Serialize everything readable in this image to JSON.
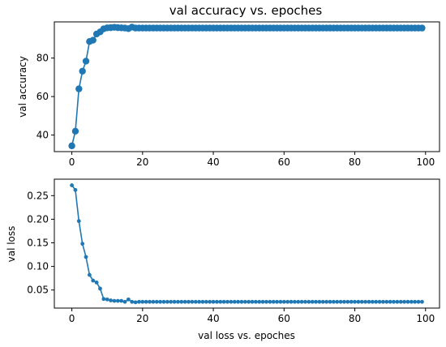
{
  "chart_data": [
    {
      "type": "line",
      "title": "val accuracy vs. epoches",
      "xlabel": "",
      "ylabel": "val accuracy",
      "xlim": [
        -4.95,
        103.95
      ],
      "ylim": [
        31.4,
        98.8
      ],
      "xticks": [
        0,
        20,
        40,
        60,
        80,
        100
      ],
      "yticks": [
        40,
        60,
        80
      ],
      "marker": "circle-large",
      "color": "#1f77b4",
      "grid": false,
      "series": [
        {
          "x": [
            0,
            1,
            2,
            3,
            4,
            5,
            6,
            7,
            8,
            9,
            10,
            11,
            12,
            13,
            14,
            15,
            16,
            17,
            18,
            19,
            20,
            21,
            22,
            23,
            24,
            25,
            26,
            27,
            28,
            29,
            30,
            31,
            32,
            33,
            34,
            35,
            36,
            37,
            38,
            39,
            40,
            41,
            42,
            43,
            44,
            45,
            46,
            47,
            48,
            49,
            50,
            51,
            52,
            53,
            54,
            55,
            56,
            57,
            58,
            59,
            60,
            61,
            62,
            63,
            64,
            65,
            66,
            67,
            68,
            69,
            70,
            71,
            72,
            73,
            74,
            75,
            76,
            77,
            78,
            79,
            80,
            81,
            82,
            83,
            84,
            85,
            86,
            87,
            88,
            89,
            90,
            91,
            92,
            93,
            94,
            95,
            96,
            97,
            98,
            99
          ],
          "values": [
            34.4,
            42.0,
            64.0,
            73.2,
            78.4,
            88.6,
            89.3,
            92.5,
            93.6,
            95.2,
            95.7,
            95.8,
            96.0,
            95.8,
            95.7,
            95.6,
            95.3,
            96.1,
            95.6,
            95.6,
            95.6,
            95.6,
            95.6,
            95.6,
            95.6,
            95.6,
            95.6,
            95.6,
            95.6,
            95.6,
            95.6,
            95.6,
            95.6,
            95.6,
            95.6,
            95.6,
            95.6,
            95.6,
            95.6,
            95.6,
            95.6,
            95.6,
            95.6,
            95.6,
            95.6,
            95.6,
            95.6,
            95.6,
            95.6,
            95.6,
            95.6,
            95.6,
            95.6,
            95.6,
            95.6,
            95.6,
            95.6,
            95.6,
            95.6,
            95.6,
            95.6,
            95.6,
            95.6,
            95.6,
            95.6,
            95.6,
            95.6,
            95.6,
            95.6,
            95.6,
            95.6,
            95.6,
            95.6,
            95.6,
            95.6,
            95.6,
            95.6,
            95.6,
            95.6,
            95.6,
            95.6,
            95.6,
            95.6,
            95.6,
            95.6,
            95.6,
            95.6,
            95.6,
            95.6,
            95.6,
            95.6,
            95.6,
            95.6,
            95.6,
            95.6,
            95.6,
            95.6,
            95.6,
            95.6,
            95.6
          ]
        }
      ]
    },
    {
      "type": "line",
      "title": "",
      "xlabel": "val loss vs. epoches",
      "ylabel": "val loss",
      "xlim": [
        -4.95,
        103.95
      ],
      "ylim": [
        0.0117,
        0.2849
      ],
      "xticks": [
        0,
        20,
        40,
        60,
        80,
        100
      ],
      "yticks": [
        0.05,
        0.1,
        0.15,
        0.2,
        0.25
      ],
      "marker": "circle-small",
      "color": "#1f77b4",
      "grid": false,
      "series": [
        {
          "x": [
            0,
            1,
            2,
            3,
            4,
            5,
            6,
            7,
            8,
            9,
            10,
            11,
            12,
            13,
            14,
            15,
            16,
            17,
            18,
            19,
            20,
            21,
            22,
            23,
            24,
            25,
            26,
            27,
            28,
            29,
            30,
            31,
            32,
            33,
            34,
            35,
            36,
            37,
            38,
            39,
            40,
            41,
            42,
            43,
            44,
            45,
            46,
            47,
            48,
            49,
            50,
            51,
            52,
            53,
            54,
            55,
            56,
            57,
            58,
            59,
            60,
            61,
            62,
            63,
            64,
            65,
            66,
            67,
            68,
            69,
            70,
            71,
            72,
            73,
            74,
            75,
            76,
            77,
            78,
            79,
            80,
            81,
            82,
            83,
            84,
            85,
            86,
            87,
            88,
            89,
            90,
            91,
            92,
            93,
            94,
            95,
            96,
            97,
            98,
            99
          ],
          "values": [
            0.272,
            0.262,
            0.196,
            0.148,
            0.12,
            0.082,
            0.07,
            0.066,
            0.053,
            0.031,
            0.03,
            0.028,
            0.027,
            0.027,
            0.027,
            0.025,
            0.03,
            0.025,
            0.024,
            0.025,
            0.025,
            0.025,
            0.025,
            0.025,
            0.025,
            0.025,
            0.025,
            0.025,
            0.025,
            0.025,
            0.025,
            0.025,
            0.025,
            0.025,
            0.025,
            0.025,
            0.025,
            0.025,
            0.025,
            0.025,
            0.025,
            0.025,
            0.025,
            0.025,
            0.025,
            0.025,
            0.025,
            0.025,
            0.025,
            0.025,
            0.025,
            0.025,
            0.025,
            0.025,
            0.025,
            0.025,
            0.025,
            0.025,
            0.025,
            0.025,
            0.025,
            0.025,
            0.025,
            0.025,
            0.025,
            0.025,
            0.025,
            0.025,
            0.025,
            0.025,
            0.025,
            0.025,
            0.025,
            0.025,
            0.025,
            0.025,
            0.025,
            0.025,
            0.025,
            0.025,
            0.025,
            0.025,
            0.025,
            0.025,
            0.025,
            0.025,
            0.025,
            0.025,
            0.025,
            0.025,
            0.025,
            0.025,
            0.025,
            0.025,
            0.025,
            0.025,
            0.025,
            0.025,
            0.025,
            0.025
          ]
        }
      ]
    }
  ]
}
